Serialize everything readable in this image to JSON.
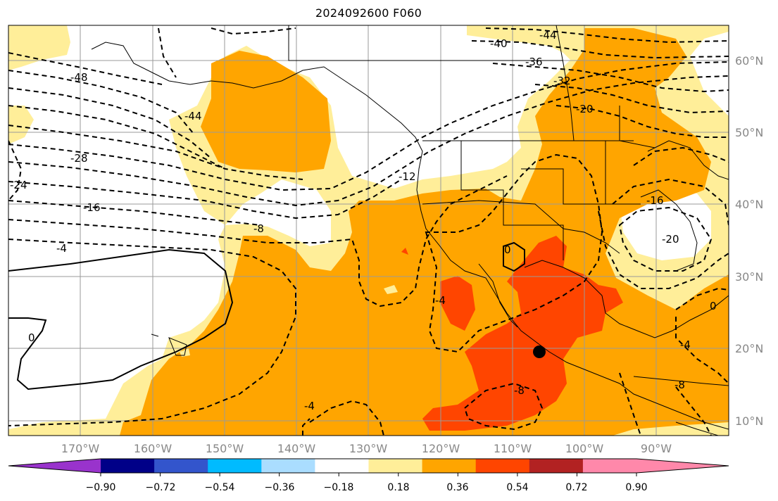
{
  "title": "2024092600 F060",
  "map": {
    "lat_labels": [
      "60°N",
      "50°N",
      "40°N",
      "30°N",
      "20°N",
      "10°N"
    ],
    "lon_labels": [
      "170°W",
      "160°W",
      "150°W",
      "140°W",
      "130°W",
      "120°W",
      "110°W",
      "100°W",
      "90°W"
    ],
    "contour_labels": [
      "-48",
      "-44",
      "-40",
      "-36",
      "-32",
      "-28",
      "-24",
      "-20",
      "-16",
      "-16",
      "-12",
      "-8",
      "-4",
      "0",
      "0",
      "-4",
      "-8",
      "-4",
      "-20",
      "0",
      "-4",
      "-8",
      "-44"
    ],
    "shading_colors": {
      "light_yellow": "#ffee99",
      "orange": "#ffa500",
      "red_orange": "#ff4500",
      "dark_red": "#b22222"
    }
  },
  "colorbar": {
    "tick_labels": [
      "−0.90",
      "−0.72",
      "−0.54",
      "−0.36",
      "−0.18",
      "0.18",
      "0.36",
      "0.54",
      "0.72",
      "0.90"
    ],
    "colors": [
      "#9933cc",
      "#000088",
      "#3355cc",
      "#00bbff",
      "#aaddff",
      "#ffffff",
      "#ffee99",
      "#ffa500",
      "#ff4500",
      "#b22222",
      "#ff88aa",
      "#ff88aa"
    ]
  }
}
